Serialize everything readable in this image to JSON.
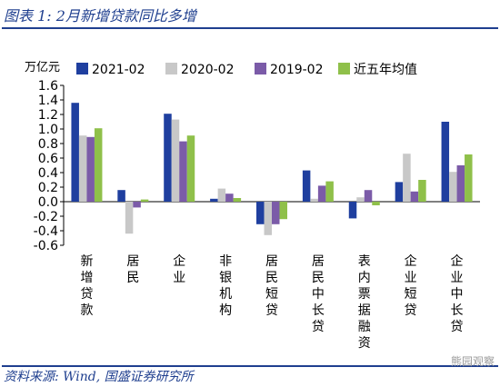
{
  "header": {
    "title": "图表 1:  2月新增贷款同比多增"
  },
  "footer": {
    "source": "资料来源:  Wind, 国盛证券研究所",
    "watermark": "熊园观察"
  },
  "chart_data": {
    "type": "bar",
    "title": "",
    "ylabel": "万亿元",
    "ylim": [
      -0.6,
      1.6
    ],
    "yticks": [
      -0.6,
      -0.4,
      -0.2,
      0.0,
      0.2,
      0.4,
      0.6,
      0.8,
      1.0,
      1.2,
      1.4,
      1.6
    ],
    "yticks_labels": [
      "-0.6",
      "-0.4",
      "-0.2",
      "0.0",
      "0.2",
      "0.4",
      "0.6",
      "0.8",
      "1.0",
      "1.2",
      "1.4",
      "1.6"
    ],
    "grid": false,
    "legend_position": "top",
    "categories": [
      "新增贷款",
      "居民",
      "企业",
      "非银机构",
      "居民短贷",
      "居民中长贷",
      "表内票据融资",
      "企业短贷",
      "企业中长贷"
    ],
    "series": [
      {
        "name": "2021-02",
        "color": "#1f3f9f",
        "values": [
          1.36,
          0.16,
          1.21,
          0.04,
          -0.31,
          0.43,
          -0.23,
          0.27,
          1.1
        ]
      },
      {
        "name": "2020-02",
        "color": "#c8c8c8",
        "values": [
          0.91,
          -0.44,
          1.13,
          0.18,
          -0.46,
          0.04,
          0.06,
          0.66,
          0.41
        ]
      },
      {
        "name": "2019-02",
        "color": "#7b5ba8",
        "values": [
          0.89,
          -0.08,
          0.83,
          0.11,
          -0.31,
          0.22,
          0.16,
          0.14,
          0.5
        ]
      },
      {
        "name": "近五年均值",
        "color": "#8fc04a",
        "values": [
          1.01,
          0.03,
          0.91,
          0.05,
          -0.24,
          0.28,
          -0.05,
          0.3,
          0.65
        ]
      }
    ]
  }
}
